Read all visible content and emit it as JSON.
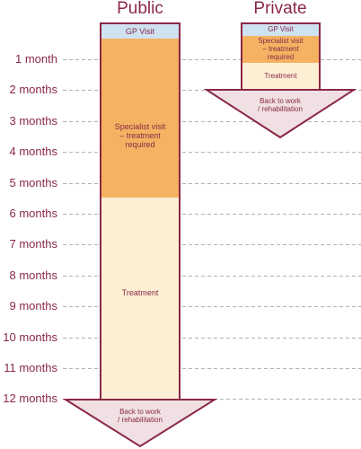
{
  "months": [
    "1 month",
    "2 months",
    "3 months",
    "4 months",
    "5 months",
    "6 months",
    "7 months",
    "8 months",
    "9 months",
    "10 months",
    "11 months",
    "12 months"
  ],
  "columns": {
    "public": {
      "title": "Public",
      "gp_visit": "GP Visit",
      "specialist": [
        "Specialist visit",
        "– treatment",
        "required"
      ],
      "treatment": "Treatment",
      "back_to_work": [
        "Back to work",
        "/ rehabilitation"
      ]
    },
    "private": {
      "title": "Private",
      "gp_visit": "GP Visit",
      "specialist": [
        "Specialist visit",
        "– treatment",
        "required"
      ],
      "treatment": "Treatment",
      "back_to_work": [
        "Back to work",
        "/ rehabilitation"
      ]
    }
  },
  "colors": {
    "text": "#8a2846",
    "border": "#8a2846",
    "gp": "#cfe2f2",
    "specialist": "#f5b262",
    "treatment": "#fdefd3",
    "arrow": "#f0e0e3",
    "dash": "#9a9a9a"
  }
}
